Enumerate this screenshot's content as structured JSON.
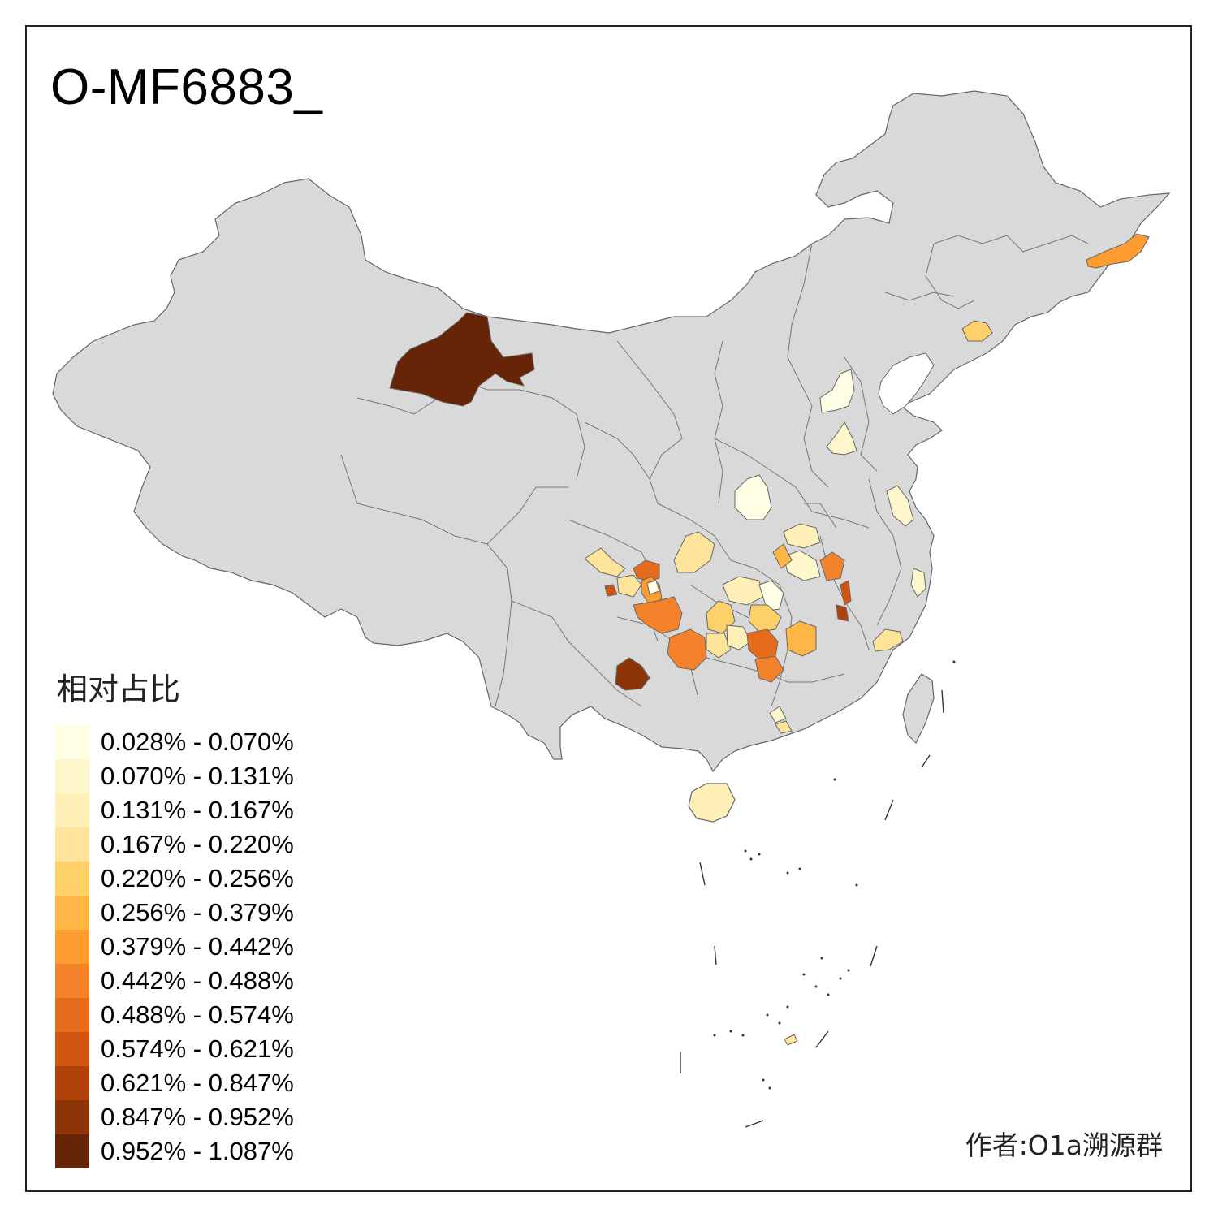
{
  "title": "O-MF6883_",
  "legend": {
    "title": "相对占比",
    "items": [
      {
        "label": "0.028% - 0.070%",
        "color": "#ffffe5"
      },
      {
        "label": "0.070% - 0.131%",
        "color": "#fff7cc"
      },
      {
        "label": "0.131% - 0.167%",
        "color": "#fff0b8"
      },
      {
        "label": "0.167% - 0.220%",
        "color": "#fee49a"
      },
      {
        "label": "0.220% - 0.256%",
        "color": "#fed06a"
      },
      {
        "label": "0.256% - 0.379%",
        "color": "#feb646"
      },
      {
        "label": "0.379% - 0.442%",
        "color": "#fd9c30"
      },
      {
        "label": "0.442% - 0.488%",
        "color": "#f4822a"
      },
      {
        "label": "0.488% - 0.574%",
        "color": "#e66c1c"
      },
      {
        "label": "0.574% - 0.621%",
        "color": "#d05510"
      },
      {
        "label": "0.621% - 0.847%",
        "color": "#b0430a"
      },
      {
        "label": "0.847% - 0.952%",
        "color": "#8d3508"
      },
      {
        "label": "0.952% - 1.087%",
        "color": "#662506"
      }
    ]
  },
  "author": "作者:O1a溯源群",
  "colors": {
    "land": "#d9d9d9",
    "border": "#666666",
    "background": "#ffffff"
  }
}
